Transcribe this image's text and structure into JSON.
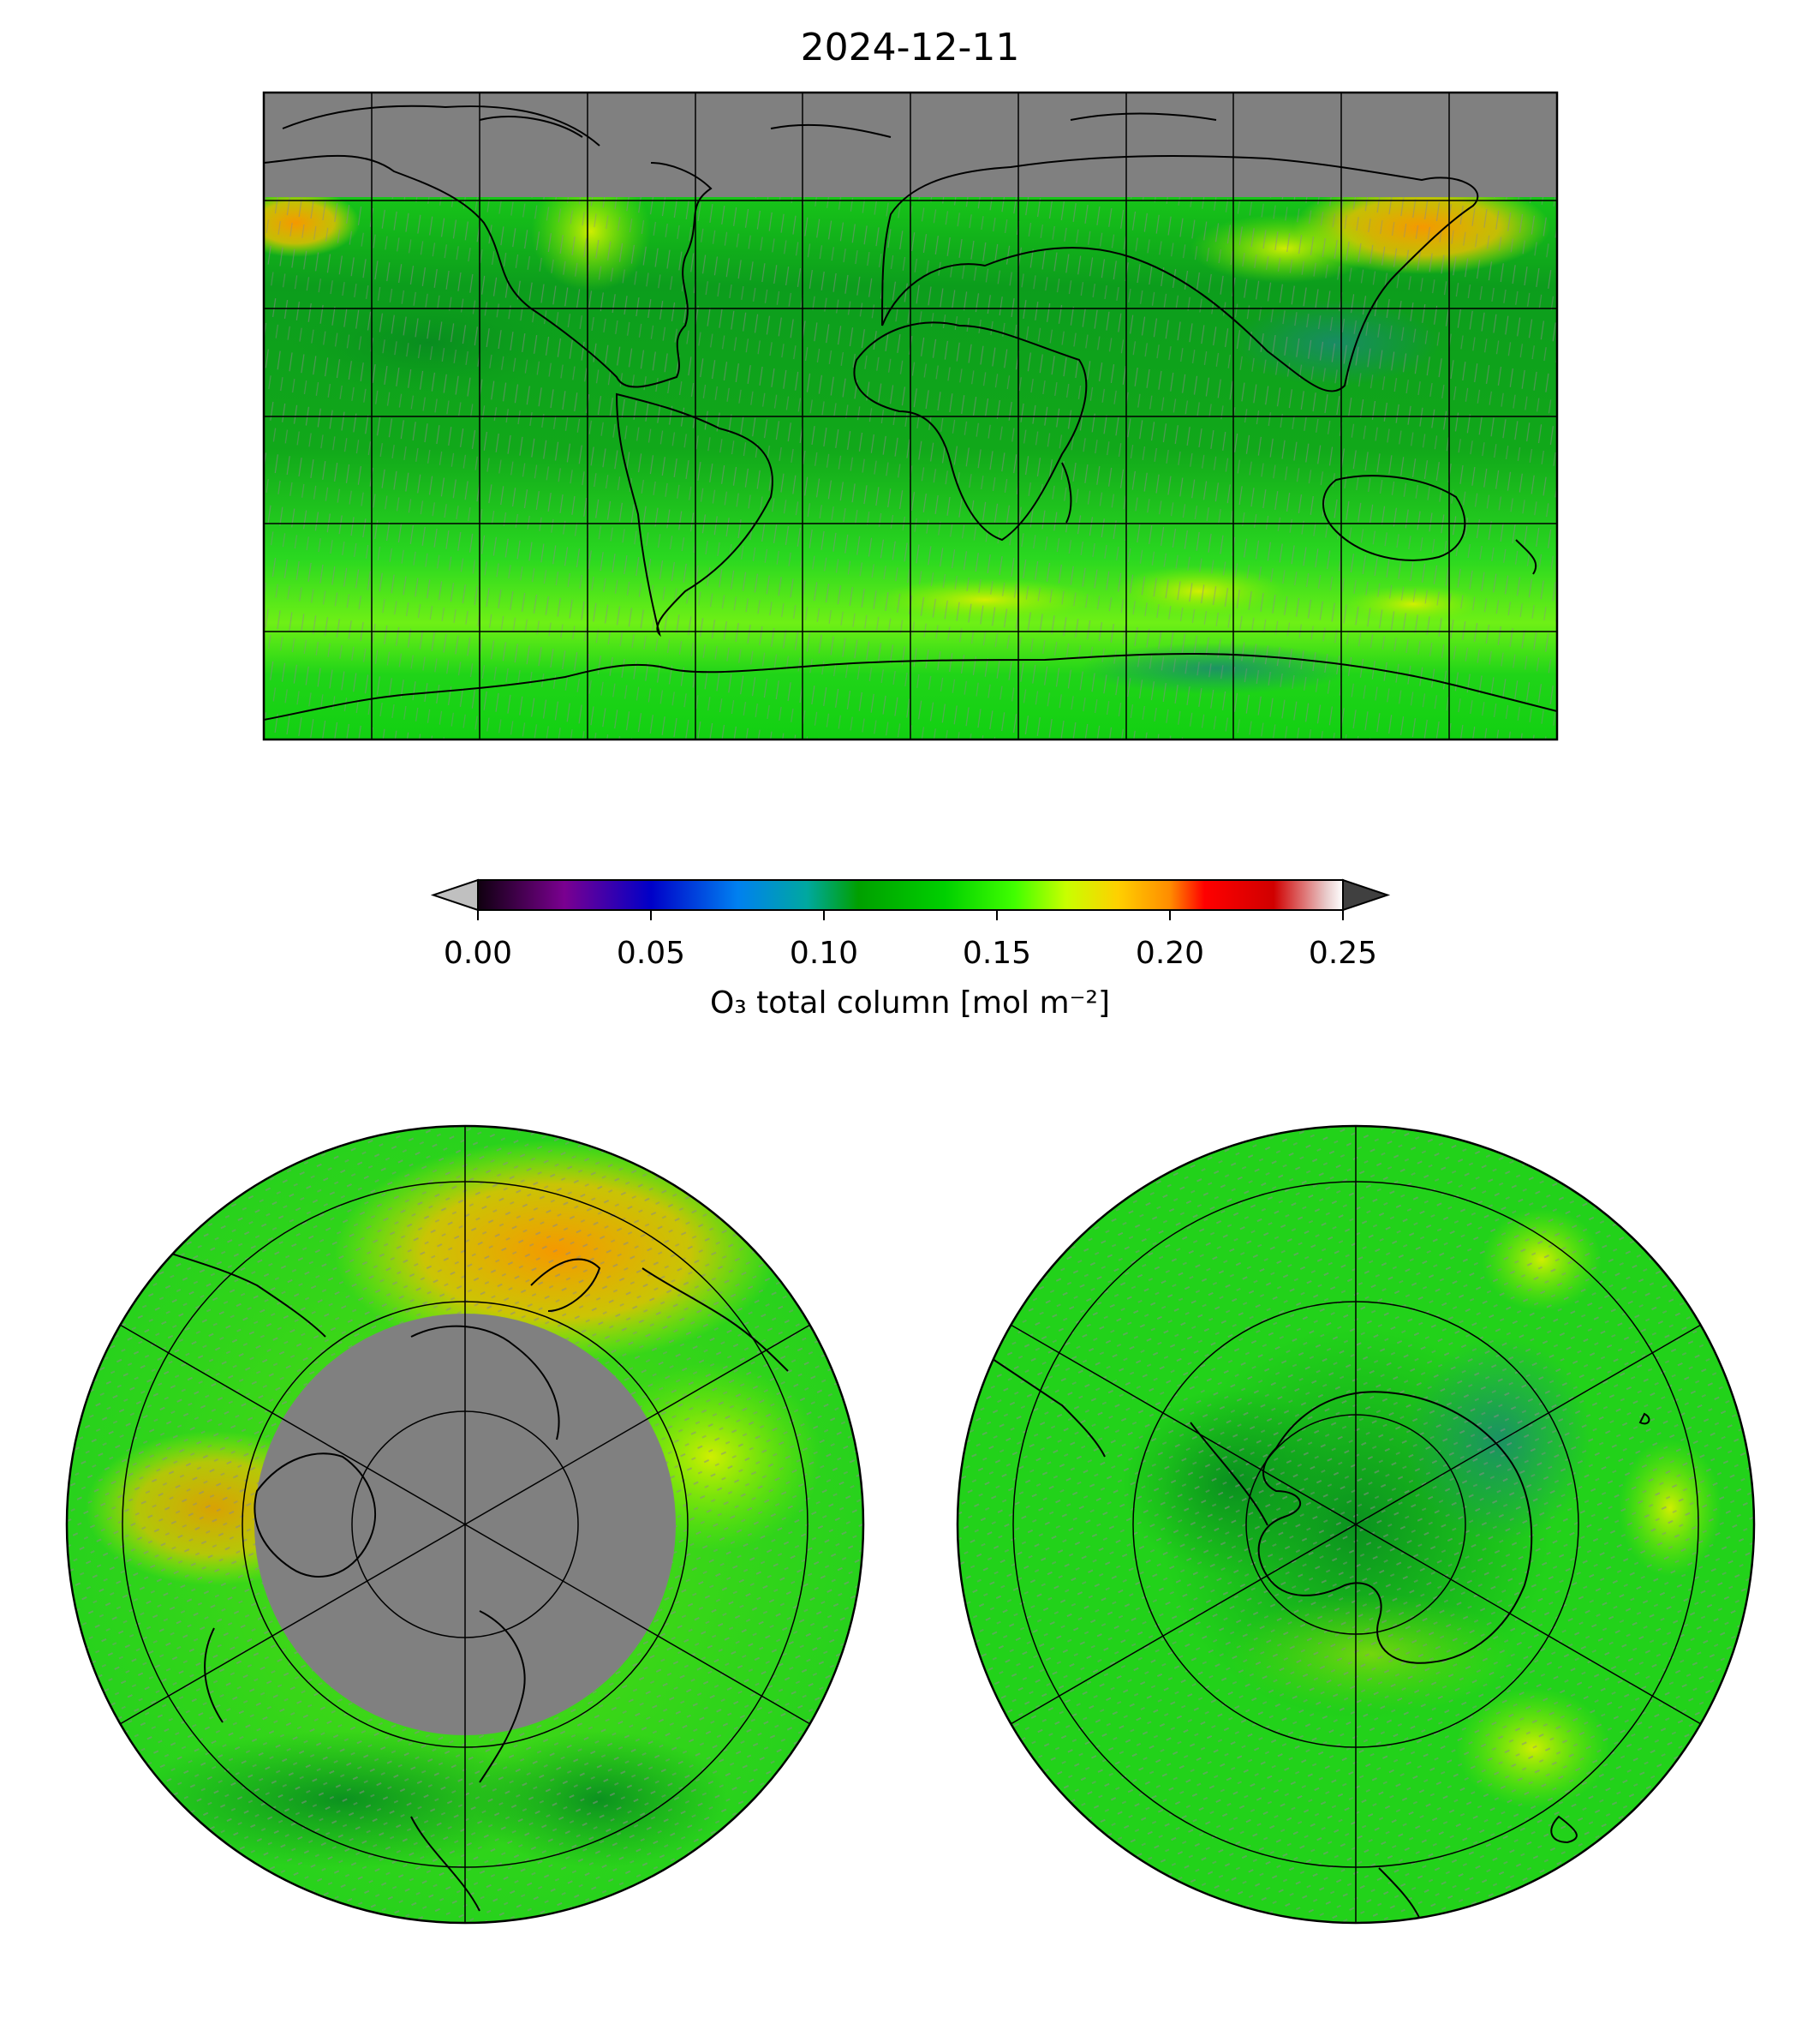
{
  "figure": {
    "title": "2024-12-11",
    "colorbar": {
      "label": "O₃ total column [mol m⁻²]",
      "ticks": [
        "0.00",
        "0.05",
        "0.10",
        "0.15",
        "0.20",
        "0.25"
      ],
      "range": [
        0.0,
        0.25
      ],
      "extend": "both",
      "colormap_stops": [
        {
          "value": 0.0,
          "color": "#100010"
        },
        {
          "value": 0.025,
          "color": "#7a0090"
        },
        {
          "value": 0.05,
          "color": "#0000c8"
        },
        {
          "value": 0.075,
          "color": "#0080f0"
        },
        {
          "value": 0.095,
          "color": "#00a8a0"
        },
        {
          "value": 0.11,
          "color": "#00a000"
        },
        {
          "value": 0.135,
          "color": "#00d000"
        },
        {
          "value": 0.155,
          "color": "#40ff00"
        },
        {
          "value": 0.17,
          "color": "#c8ff00"
        },
        {
          "value": 0.185,
          "color": "#ffd000"
        },
        {
          "value": 0.2,
          "color": "#ff8c00"
        },
        {
          "value": 0.21,
          "color": "#ff0000"
        },
        {
          "value": 0.23,
          "color": "#d00000"
        },
        {
          "value": 0.245,
          "color": "#e8c8c8"
        },
        {
          "value": 0.25,
          "color": "#ffffff"
        }
      ],
      "under_color": "#c0c0c0",
      "over_color": "#404040"
    },
    "colors": {
      "no_data": "#808080",
      "field_base": "#1fd21f",
      "field_dark": "#0a9a1a",
      "field_yellow": "#c8f000",
      "field_orange": "#f5a000",
      "field_teal": "#199070"
    }
  }
}
